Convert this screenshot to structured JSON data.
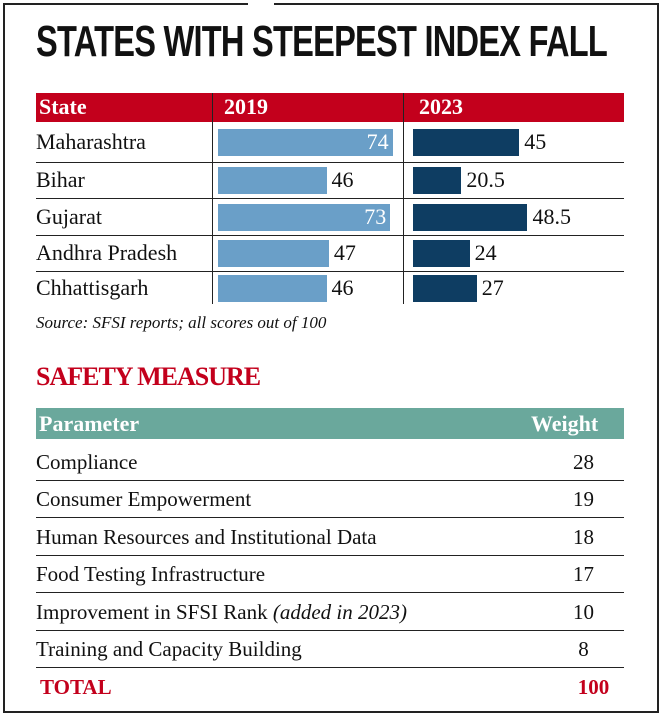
{
  "title": "STATES WITH STEEPEST INDEX FALL",
  "colors": {
    "header_red": "#c3001c",
    "bar_2019": "#6a9fc8",
    "bar_2023": "#0e3d62",
    "header_teal": "#6aa89c"
  },
  "chart_data": {
    "type": "bar",
    "title": "STATES WITH STEEPEST INDEX FALL",
    "columns": [
      "State",
      "2019",
      "2023"
    ],
    "categories": [
      "Maharashtra",
      "Bihar",
      "Gujarat",
      "Andhra Pradesh",
      "Chhattisgarh"
    ],
    "series": [
      {
        "name": "2019",
        "values": [
          74,
          46,
          73,
          47,
          46
        ]
      },
      {
        "name": "2023",
        "values": [
          45,
          20.5,
          48.5,
          24,
          27
        ]
      }
    ],
    "labels_2019": [
      "74",
      "46",
      "73",
      "47",
      "46"
    ],
    "labels_2023": [
      "45",
      "20.5",
      "48.5",
      "24",
      "27"
    ],
    "xlim": [
      0,
      100
    ]
  },
  "source": "Source: SFSI reports; all scores out of 100",
  "safety": {
    "title": "SAFETY MEASURE",
    "header": {
      "parameter": "Parameter",
      "weight": "Weight"
    },
    "rows": [
      {
        "parameter": "Compliance",
        "note": "",
        "weight": "28"
      },
      {
        "parameter": "Consumer Empowerment",
        "note": "",
        "weight": "19"
      },
      {
        "parameter": "Human Resources and Institutional Data",
        "note": "",
        "weight": "18"
      },
      {
        "parameter": "Food Testing Infrastructure",
        "note": "",
        "weight": "17"
      },
      {
        "parameter": "Improvement in SFSI Rank ",
        "note": "(added in 2023)",
        "weight": "10"
      },
      {
        "parameter": "Training and Capacity Building",
        "note": "",
        "weight": "8"
      }
    ],
    "total": {
      "label": "TOTAL",
      "weight": "100"
    }
  }
}
